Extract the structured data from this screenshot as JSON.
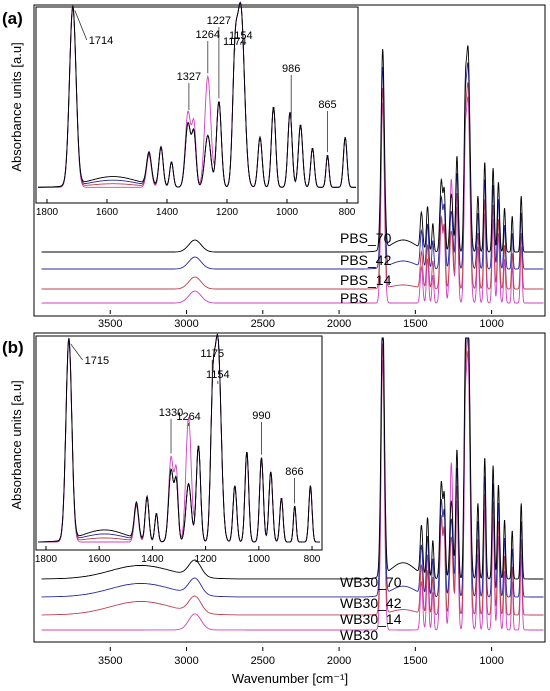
{
  "chart_data": [
    {
      "panel_label": "(a)",
      "type": "line",
      "ylabel": "Absorbance units [a.u]",
      "xlabel": "",
      "x_reversed": true,
      "xlim": [
        4000,
        650
      ],
      "xticks": [
        "3500",
        "3000",
        "2500",
        "2000",
        "1500",
        "1000"
      ],
      "xtick_values": [
        3500,
        3000,
        2500,
        2000,
        1500,
        1000
      ],
      "series_labels": [
        "PBS_70",
        "PBS_42",
        "PBS_14",
        "PBS"
      ],
      "series_colors": [
        "#d040c0",
        "#c04050",
        "#2a2aa0",
        "#000000"
      ],
      "peaks": [
        1714,
        1327,
        1264,
        1227,
        1174,
        1154,
        986,
        865
      ],
      "inset": {
        "xlim": [
          1830,
          770
        ],
        "xticks": [
          "1800",
          "1600",
          "1400",
          "1200",
          "1000",
          "800"
        ],
        "xtick_values": [
          1800,
          1600,
          1400,
          1200,
          1000,
          800
        ],
        "annotations": [
          {
            "text": "1714",
            "x": 1714
          },
          {
            "text": "1327",
            "x": 1327
          },
          {
            "text": "1264",
            "x": 1264
          },
          {
            "text": "1227",
            "x": 1227
          },
          {
            "text": "1174",
            "x": 1174
          },
          {
            "text": "1154",
            "x": 1154
          },
          {
            "text": "986",
            "x": 986
          },
          {
            "text": "865",
            "x": 865
          }
        ]
      }
    },
    {
      "panel_label": "(b)",
      "type": "line",
      "ylabel": "Absorbance units [a.u]",
      "xlabel": "Wavenumber [cm⁻¹]",
      "x_reversed": true,
      "xlim": [
        4000,
        650
      ],
      "xticks": [
        "3500",
        "3000",
        "2500",
        "2000",
        "1500",
        "1000"
      ],
      "xtick_values": [
        3500,
        3000,
        2500,
        2000,
        1500,
        1000
      ],
      "series_labels": [
        "WB30_70",
        "WB30_42",
        "WB30_14",
        "WB30"
      ],
      "series_colors": [
        "#d040c0",
        "#c04050",
        "#2a2aa0",
        "#000000"
      ],
      "peaks": [
        1715,
        1330,
        1264,
        1175,
        1154,
        990,
        866
      ],
      "inset": {
        "xlim": [
          1830,
          770
        ],
        "xticks": [
          "1800",
          "1600",
          "1400",
          "1200",
          "1000",
          "800"
        ],
        "xtick_values": [
          1800,
          1600,
          1400,
          1200,
          1000,
          800
        ],
        "annotations": [
          {
            "text": "1715",
            "x": 1715
          },
          {
            "text": "1330",
            "x": 1330
          },
          {
            "text": "1264",
            "x": 1264
          },
          {
            "text": "1175",
            "x": 1175
          },
          {
            "text": "1154",
            "x": 1154
          },
          {
            "text": "990",
            "x": 990
          },
          {
            "text": "866",
            "x": 866
          }
        ]
      }
    }
  ]
}
